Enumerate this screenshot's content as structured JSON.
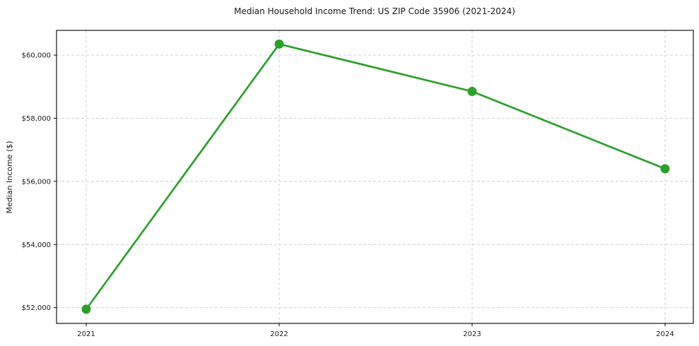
{
  "chart_data": {
    "type": "line",
    "title": "Median Household Income Trend: US ZIP Code 35906 (2021-2024)",
    "xlabel": "",
    "ylabel": "Median Income ($)",
    "categories": [
      "2021",
      "2022",
      "2023",
      "2024"
    ],
    "values": [
      51950,
      60350,
      58850,
      56400
    ],
    "y_ticks": [
      52000,
      54000,
      56000,
      58000,
      60000
    ],
    "y_tick_labels": [
      "$52,000",
      "$54,000",
      "$56,000",
      "$58,000",
      "$60,000"
    ],
    "ylim": [
      51500,
      60785
    ],
    "grid": "both-dashed",
    "legend_position": "none",
    "colors": {
      "line": "#2ca02c",
      "marker": "#2ca02c",
      "grid": "#cccccc",
      "spine": "#000000",
      "text": "#1a1a1a"
    }
  }
}
